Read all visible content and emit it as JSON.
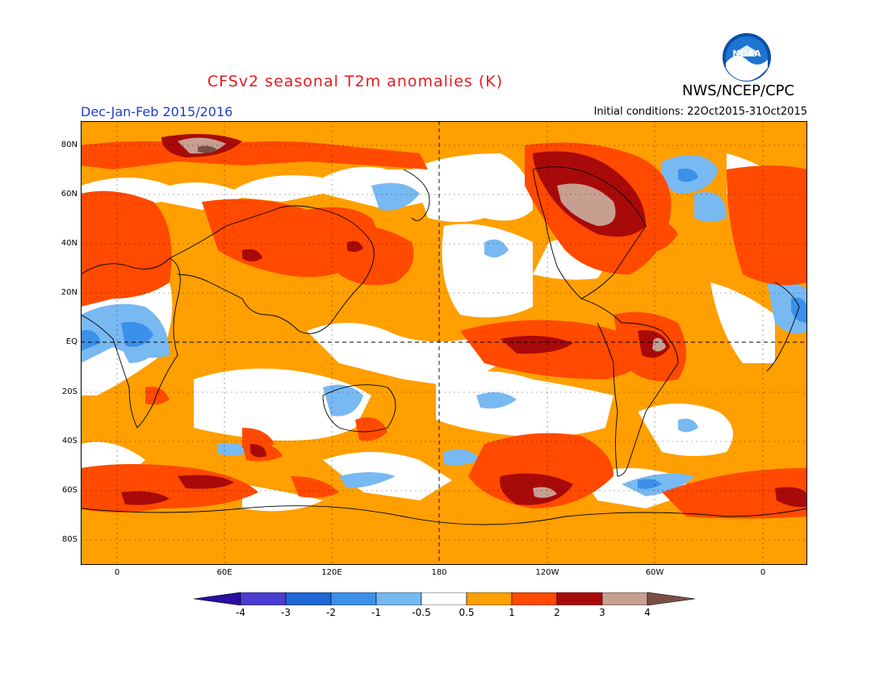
{
  "title": "CFSv2 seasonal T2m anomalies (K)",
  "agency": "NWS/NCEP/CPC",
  "logo_text": "NOAA",
  "season": "Dec-Jan-Feb 2015/2016",
  "initial_conditions": "Initial conditions: 22Oct2015-31Oct2015",
  "lat_labels": [
    "80N",
    "60N",
    "40N",
    "20N",
    "EQ",
    "20S",
    "40S",
    "60S",
    "80S"
  ],
  "lon_labels": [
    "0",
    "60E",
    "120E",
    "180",
    "120W",
    "60W",
    "0"
  ],
  "colorbar_labels": [
    "-4",
    "-3",
    "-2",
    "-1",
    "-0.5",
    "0.5",
    "1",
    "2",
    "3",
    "4"
  ],
  "colors": {
    "lt_m4": "#2a0fa0",
    "m4_m3": "#4b3dcf",
    "m3_m2": "#1f66d6",
    "m2_m1": "#3b90ea",
    "m1_m05": "#78b9f2",
    "neutral": "#ffffff",
    "p05_1": "#ff9f00",
    "p1_2": "#ff4a00",
    "p2_3": "#a80a0a",
    "p3_4": "#c79f90",
    "gt_4": "#7a5045"
  }
}
